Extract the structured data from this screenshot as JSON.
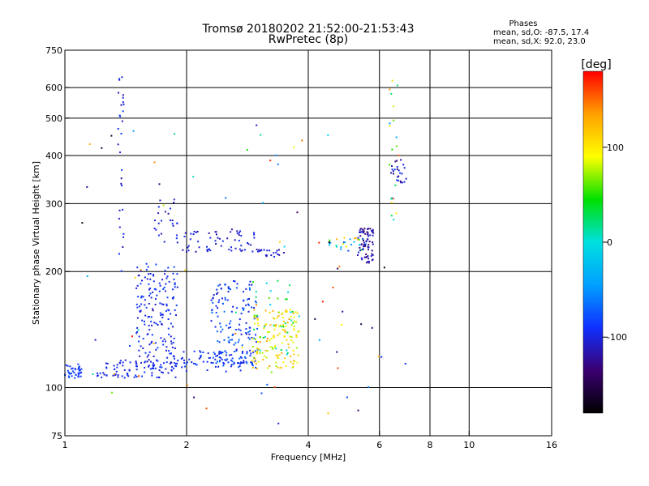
{
  "chart_data": {
    "type": "scatter",
    "title": "Tromsø 20180202 21:52:00-21:53:43",
    "subtitle": "RwPretec (8p)",
    "xlabel": "Frequency [MHz]",
    "ylabel": "Stationary phase Virtual Height [km]",
    "x_scale": "log",
    "y_scale": "log",
    "xlim": [
      1,
      16
    ],
    "ylim": [
      75,
      750
    ],
    "x_ticks": [
      1,
      2,
      4,
      6,
      8,
      10,
      16
    ],
    "y_ticks": [
      75,
      100,
      200,
      300,
      400,
      500,
      600,
      750
    ],
    "grid_x": [
      2,
      4,
      6,
      8,
      10
    ],
    "grid_y": [
      100,
      200,
      300,
      400,
      500,
      600
    ],
    "grid": true,
    "stats": {
      "heading": "Phases",
      "line_o": "mean, sd,O: -87.5, 17.4",
      "line_x": "mean, sd,X:  92.0, 23.0"
    },
    "colorbar": {
      "label": "[deg]",
      "range": [
        -180,
        180
      ],
      "ticks": [
        100,
        0,
        -100
      ],
      "colors": [
        "#000000",
        "#3a0070",
        "#1030ff",
        "#00a0ff",
        "#00e0e0",
        "#00e000",
        "#ffff00",
        "#ffa000",
        "#ff0000"
      ]
    },
    "clusters": [
      {
        "x": [
          1.0,
          1.1
        ],
        "y": [
          105,
          115
        ],
        "phase": [
          -95,
          -75
        ],
        "n": 40
      },
      {
        "x": [
          1.2,
          1.9
        ],
        "y": [
          106,
          118
        ],
        "phase": [
          -110,
          -85
        ],
        "n": 90
      },
      {
        "x": [
          1.5,
          1.9
        ],
        "y": [
          115,
          210
        ],
        "phase": [
          -110,
          -80
        ],
        "n": 170
      },
      {
        "x": [
          1.9,
          3.0
        ],
        "y": [
          110,
          125
        ],
        "phase": [
          -105,
          -75
        ],
        "n": 80
      },
      {
        "x": [
          2.3,
          3.0
        ],
        "y": [
          115,
          190
        ],
        "phase": [
          -110,
          -60
        ],
        "n": 150
      },
      {
        "x": [
          2.9,
          3.8
        ],
        "y": [
          112,
          160
        ],
        "phase": [
          70,
          140
        ],
        "n": 140
      },
      {
        "x": [
          2.9,
          3.8
        ],
        "y": [
          120,
          190
        ],
        "phase": [
          -20,
          60
        ],
        "n": 35
      },
      {
        "x": [
          1.95,
          3.0
        ],
        "y": [
          225,
          255
        ],
        "phase": [
          -120,
          -90
        ],
        "n": 60
      },
      {
        "x": [
          3.0,
          3.5
        ],
        "y": [
          218,
          228
        ],
        "phase": [
          -120,
          -95
        ],
        "n": 20
      },
      {
        "x": [
          1.65,
          1.9
        ],
        "y": [
          230,
          310
        ],
        "phase": [
          -120,
          -90
        ],
        "n": 25
      },
      {
        "x": [
          1.35,
          1.4
        ],
        "y": [
          200,
          650
        ],
        "phase": [
          -120,
          -80
        ],
        "n": 30
      },
      {
        "x": [
          4.4,
          5.6
        ],
        "y": [
          225,
          245
        ],
        "phase": [
          -115,
          140
        ],
        "n": 30
      },
      {
        "x": [
          5.3,
          5.8
        ],
        "y": [
          210,
          260
        ],
        "phase": [
          -140,
          -100
        ],
        "n": 70
      },
      {
        "x": [
          6.4,
          7.0
        ],
        "y": [
          340,
          390
        ],
        "phase": [
          -130,
          -80
        ],
        "n": 25
      },
      {
        "x": [
          6.3,
          6.7
        ],
        "y": [
          260,
          660
        ],
        "phase": [
          -60,
          170
        ],
        "n": 20
      },
      {
        "x": [
          1.1,
          7.0
        ],
        "y": [
          80,
          500
        ],
        "phase": [
          -180,
          180
        ],
        "n": 80
      }
    ]
  }
}
